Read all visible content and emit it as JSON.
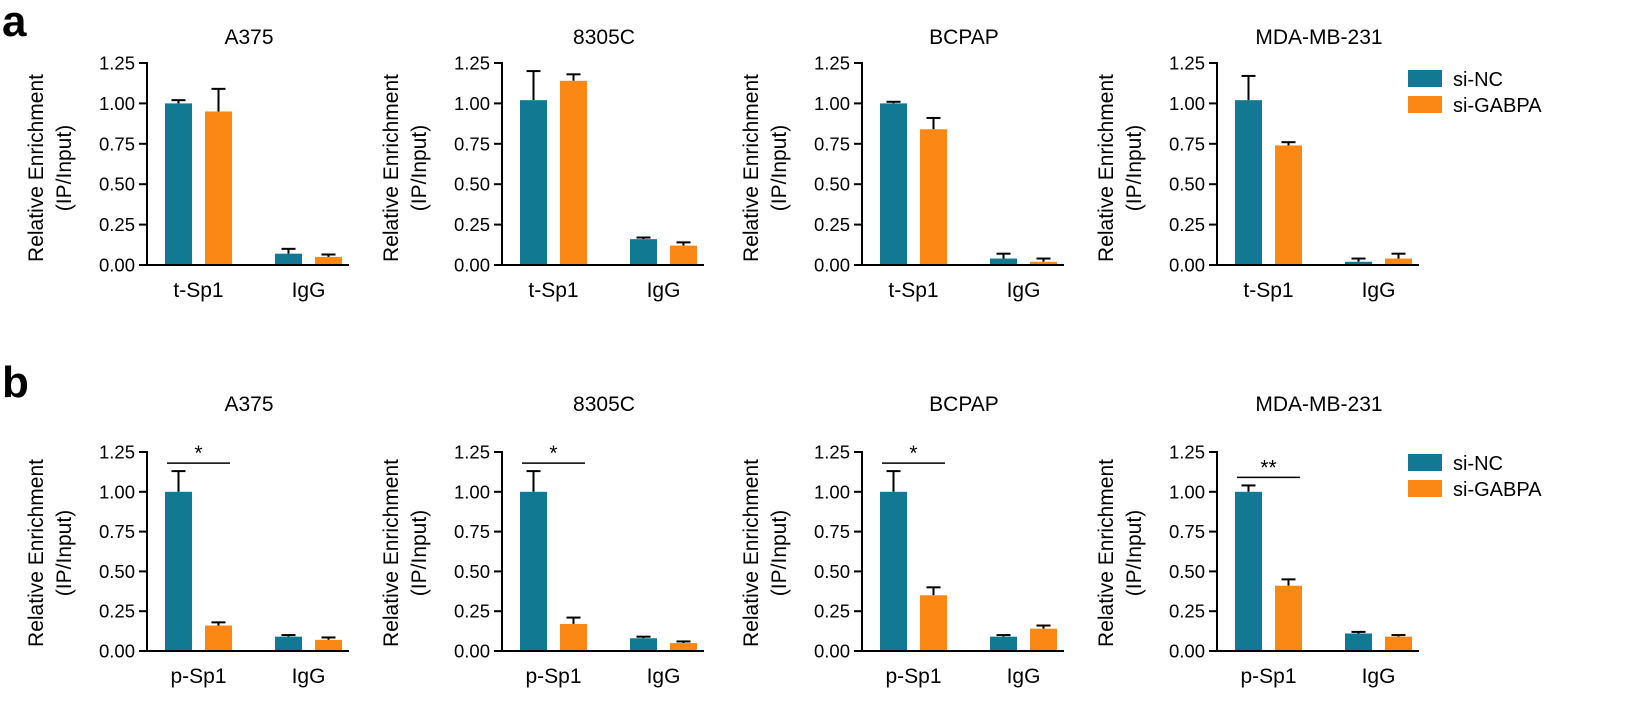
{
  "colors": {
    "si_nc": "#117A92",
    "si_gabpa": "#FB8714",
    "axis": "#000000"
  },
  "legend_items": [
    "si-NC",
    "si-GABPA"
  ],
  "panels": [
    {
      "letter": "a"
    },
    {
      "letter": "b"
    }
  ],
  "ylabel_line1": "Relative Enrichment",
  "ylabel_line2": "(IP/Input)",
  "chart_data": [
    {
      "type": "bar",
      "panel": "a",
      "title": "A375",
      "categories": [
        "t-Sp1",
        "IgG"
      ],
      "ylim": [
        0,
        1.25
      ],
      "yticks": [
        "0.00",
        "0.25",
        "0.50",
        "0.75",
        "1.00",
        "1.25"
      ],
      "xlabel": "",
      "ylabel": "Relative Enrichment (IP/Input)",
      "series": [
        {
          "name": "si-NC",
          "values": [
            1.0,
            0.07
          ],
          "errors": [
            0.02,
            0.03
          ]
        },
        {
          "name": "si-GABPA",
          "values": [
            0.95,
            0.05
          ],
          "errors": [
            0.14,
            0.015
          ]
        }
      ],
      "significance": []
    },
    {
      "type": "bar",
      "panel": "a",
      "title": "8305C",
      "categories": [
        "t-Sp1",
        "IgG"
      ],
      "ylim": [
        0,
        1.25
      ],
      "yticks": [
        "0.00",
        "0.25",
        "0.50",
        "0.75",
        "1.00",
        "1.25"
      ],
      "xlabel": "",
      "ylabel": "Relative Enrichment (IP/Input)",
      "series": [
        {
          "name": "si-NC",
          "values": [
            1.02,
            0.16
          ],
          "errors": [
            0.18,
            0.01
          ]
        },
        {
          "name": "si-GABPA",
          "values": [
            1.14,
            0.12
          ],
          "errors": [
            0.04,
            0.02
          ]
        }
      ],
      "significance": []
    },
    {
      "type": "bar",
      "panel": "a",
      "title": "BCPAP",
      "categories": [
        "t-Sp1",
        "IgG"
      ],
      "ylim": [
        0,
        1.25
      ],
      "yticks": [
        "0.00",
        "0.25",
        "0.50",
        "0.75",
        "1.00",
        "1.25"
      ],
      "xlabel": "",
      "ylabel": "Relative Enrichment (IP/Input)",
      "series": [
        {
          "name": "si-NC",
          "values": [
            1.0,
            0.04
          ],
          "errors": [
            0.01,
            0.03
          ]
        },
        {
          "name": "si-GABPA",
          "values": [
            0.84,
            0.02
          ],
          "errors": [
            0.07,
            0.02
          ]
        }
      ],
      "significance": []
    },
    {
      "type": "bar",
      "panel": "a",
      "title": "MDA-MB-231",
      "categories": [
        "t-Sp1",
        "IgG"
      ],
      "ylim": [
        0,
        1.25
      ],
      "yticks": [
        "0.00",
        "0.25",
        "0.50",
        "0.75",
        "1.00",
        "1.25"
      ],
      "xlabel": "",
      "ylabel": "Relative Enrichment (IP/Input)",
      "series": [
        {
          "name": "si-NC",
          "values": [
            1.02,
            0.02
          ],
          "errors": [
            0.15,
            0.02
          ]
        },
        {
          "name": "si-GABPA",
          "values": [
            0.74,
            0.04
          ],
          "errors": [
            0.02,
            0.03
          ]
        }
      ],
      "significance": []
    },
    {
      "type": "bar",
      "panel": "b",
      "title": "A375",
      "categories": [
        "p-Sp1",
        "IgG"
      ],
      "ylim": [
        0,
        1.25
      ],
      "yticks": [
        "0.00",
        "0.25",
        "0.50",
        "0.75",
        "1.00",
        "1.25"
      ],
      "xlabel": "",
      "ylabel": "Relative Enrichment (IP/Input)",
      "series": [
        {
          "name": "si-NC",
          "values": [
            1.0,
            0.09
          ],
          "errors": [
            0.13,
            0.01
          ]
        },
        {
          "name": "si-GABPA",
          "values": [
            0.16,
            0.07
          ],
          "errors": [
            0.02,
            0.015
          ]
        }
      ],
      "significance": [
        {
          "category": 0,
          "label": "*"
        }
      ]
    },
    {
      "type": "bar",
      "panel": "b",
      "title": "8305C",
      "categories": [
        "p-Sp1",
        "IgG"
      ],
      "ylim": [
        0,
        1.25
      ],
      "yticks": [
        "0.00",
        "0.25",
        "0.50",
        "0.75",
        "1.00",
        "1.25"
      ],
      "xlabel": "",
      "ylabel": "Relative Enrichment (IP/Input)",
      "series": [
        {
          "name": "si-NC",
          "values": [
            1.0,
            0.08
          ],
          "errors": [
            0.13,
            0.01
          ]
        },
        {
          "name": "si-GABPA",
          "values": [
            0.17,
            0.05
          ],
          "errors": [
            0.04,
            0.01
          ]
        }
      ],
      "significance": [
        {
          "category": 0,
          "label": "*"
        }
      ]
    },
    {
      "type": "bar",
      "panel": "b",
      "title": "BCPAP",
      "categories": [
        "p-Sp1",
        "IgG"
      ],
      "ylim": [
        0,
        1.25
      ],
      "yticks": [
        "0.00",
        "0.25",
        "0.50",
        "0.75",
        "1.00",
        "1.25"
      ],
      "xlabel": "",
      "ylabel": "Relative Enrichment (IP/Input)",
      "series": [
        {
          "name": "si-NC",
          "values": [
            1.0,
            0.09
          ],
          "errors": [
            0.13,
            0.01
          ]
        },
        {
          "name": "si-GABPA",
          "values": [
            0.35,
            0.14
          ],
          "errors": [
            0.05,
            0.02
          ]
        }
      ],
      "significance": [
        {
          "category": 0,
          "label": "*"
        }
      ]
    },
    {
      "type": "bar",
      "panel": "b",
      "title": "MDA-MB-231",
      "categories": [
        "p-Sp1",
        "IgG"
      ],
      "ylim": [
        0,
        1.25
      ],
      "yticks": [
        "0.00",
        "0.25",
        "0.50",
        "0.75",
        "1.00",
        "1.25"
      ],
      "xlabel": "",
      "ylabel": "Relative Enrichment (IP/Input)",
      "series": [
        {
          "name": "si-NC",
          "values": [
            1.0,
            0.11
          ],
          "errors": [
            0.04,
            0.01
          ]
        },
        {
          "name": "si-GABPA",
          "values": [
            0.41,
            0.09
          ],
          "errors": [
            0.04,
            0.01
          ]
        }
      ],
      "significance": [
        {
          "category": 0,
          "label": "**"
        }
      ]
    }
  ]
}
